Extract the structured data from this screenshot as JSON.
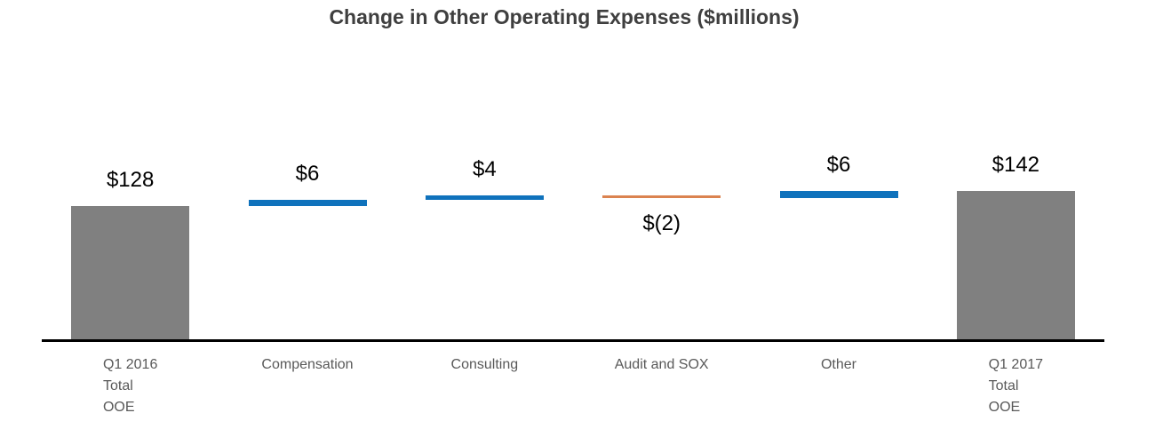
{
  "title": "Change in Other Operating Expenses ($millions)",
  "chart_data": {
    "type": "bar",
    "subtype": "waterfall",
    "title": "Change in Other Operating Expenses ($millions)",
    "categories": [
      "Q1 2016 Total OOE",
      "Compensation",
      "Consulting",
      "Audit and SOX",
      "Other",
      "Q1 2017 Total OOE"
    ],
    "value_axis": {
      "min": 0,
      "max": 160,
      "visible": false
    },
    "gridlines": false,
    "legend": "none",
    "colors": {
      "total": "#808080",
      "increase": "#0f72bc",
      "decrease": "#db8350",
      "axis_line": "#000000"
    },
    "points": [
      {
        "category_lines": [
          "Q1 2016",
          "Total",
          "OOE"
        ],
        "label": "$128",
        "value": 128,
        "start": 0,
        "end": 128,
        "role": "total"
      },
      {
        "category_lines": [
          "Compensation"
        ],
        "label": "$6",
        "value": 6,
        "start": 128,
        "end": 134,
        "role": "increase"
      },
      {
        "category_lines": [
          "Consulting"
        ],
        "label": "$4",
        "value": 4,
        "start": 134,
        "end": 138,
        "role": "increase"
      },
      {
        "category_lines": [
          "Audit and SOX"
        ],
        "label": "$(2)",
        "value": -2,
        "start": 138,
        "end": 136,
        "role": "decrease"
      },
      {
        "category_lines": [
          "Other"
        ],
        "label": "$6",
        "value": 6,
        "start": 136,
        "end": 142,
        "role": "increase"
      },
      {
        "category_lines": [
          "Q1 2017",
          "Total",
          "OOE"
        ],
        "label": "$142",
        "value": 142,
        "start": 0,
        "end": 142,
        "role": "total"
      }
    ]
  }
}
